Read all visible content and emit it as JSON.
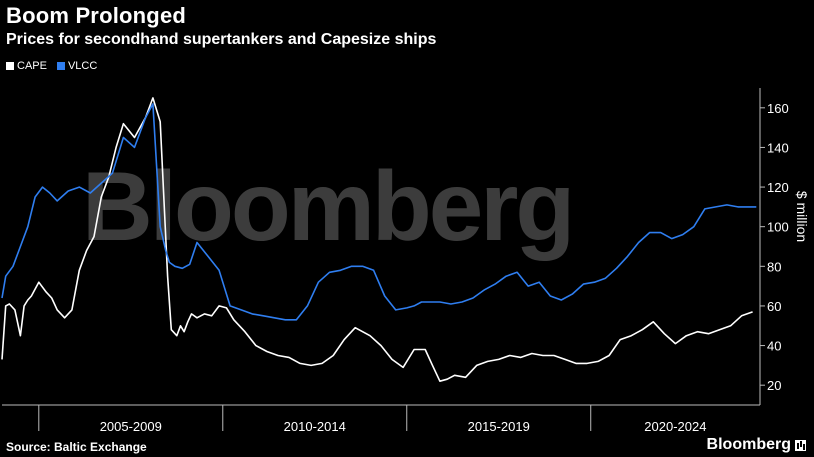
{
  "header": {
    "title": "Boom Prolonged",
    "subtitle": "Prices for secondhand supertankers and Capesize ships"
  },
  "watermark": "Bloomberg",
  "footer": {
    "source": "Source: Baltic Exchange",
    "brand": "Bloomberg"
  },
  "chart_data": {
    "type": "line",
    "title": "Boom Prolonged",
    "subtitle": "Prices for secondhand supertankers and Capesize ships",
    "ylabel": "$ million",
    "ylim": [
      10,
      170
    ],
    "yticks": [
      20,
      40,
      60,
      80,
      100,
      120,
      140,
      160
    ],
    "xlim": [
      2004.0,
      2024.6
    ],
    "x_tick_boundaries": [
      2005,
      2010,
      2015,
      2020
    ],
    "x_tick_labels": [
      "2005-2009",
      "2010-2014",
      "2015-2019",
      "2020-2024"
    ],
    "legend_position": "top-left",
    "grid": false,
    "colors": {
      "CAPE": "#ffffff",
      "VLCC": "#2f7ef0",
      "background": "#000000",
      "axis": "#bbbbbb"
    },
    "series": [
      {
        "name": "CAPE",
        "x": [
          2004.0,
          2004.1,
          2004.2,
          2004.35,
          2004.5,
          2004.6,
          2004.7,
          2004.8,
          2005.0,
          2005.2,
          2005.35,
          2005.5,
          2005.7,
          2005.9,
          2006.1,
          2006.3,
          2006.5,
          2006.7,
          2006.9,
          2007.1,
          2007.3,
          2007.6,
          2007.9,
          2008.1,
          2008.3,
          2008.5,
          2008.6,
          2008.75,
          2008.85,
          2008.95,
          2009.05,
          2009.15,
          2009.3,
          2009.5,
          2009.7,
          2009.9,
          2010.1,
          2010.3,
          2010.6,
          2010.9,
          2011.2,
          2011.5,
          2011.8,
          2012.1,
          2012.4,
          2012.7,
          2013.0,
          2013.3,
          2013.6,
          2014.0,
          2014.3,
          2014.6,
          2014.9,
          2015.2,
          2015.5,
          2015.7,
          2015.9,
          2016.1,
          2016.3,
          2016.6,
          2016.9,
          2017.2,
          2017.5,
          2017.8,
          2018.1,
          2018.4,
          2018.7,
          2019.0,
          2019.3,
          2019.6,
          2019.9,
          2020.2,
          2020.5,
          2020.8,
          2021.1,
          2021.4,
          2021.7,
          2022.0,
          2022.3,
          2022.6,
          2022.9,
          2023.2,
          2023.5,
          2023.8,
          2024.1,
          2024.4
        ],
        "values": [
          33,
          60,
          61,
          58,
          45,
          60,
          63,
          65,
          72,
          67,
          64,
          58,
          54,
          58,
          78,
          88,
          95,
          115,
          125,
          140,
          152,
          145,
          155,
          165,
          153,
          75,
          48,
          45,
          50,
          47,
          52,
          56,
          54,
          56,
          55,
          60,
          59,
          53,
          47,
          40,
          37,
          35,
          34,
          31,
          30,
          31,
          35,
          43,
          49,
          45,
          40,
          33,
          29,
          38,
          38,
          30,
          22,
          23,
          25,
          24,
          30,
          32,
          33,
          35,
          34,
          36,
          35,
          35,
          33,
          31,
          31,
          32,
          35,
          43,
          45,
          48,
          52,
          46,
          41,
          45,
          47,
          46,
          48,
          50,
          55,
          57
        ]
      },
      {
        "name": "VLCC",
        "x": [
          2004.0,
          2004.1,
          2004.3,
          2004.5,
          2004.7,
          2004.9,
          2005.1,
          2005.3,
          2005.5,
          2005.8,
          2006.1,
          2006.4,
          2006.7,
          2007.0,
          2007.3,
          2007.6,
          2007.9,
          2008.1,
          2008.3,
          2008.45,
          2008.55,
          2008.7,
          2008.9,
          2009.1,
          2009.3,
          2009.6,
          2009.9,
          2010.2,
          2010.5,
          2010.8,
          2011.1,
          2011.4,
          2011.7,
          2012.0,
          2012.3,
          2012.6,
          2012.9,
          2013.2,
          2013.5,
          2013.8,
          2014.1,
          2014.4,
          2014.7,
          2015.0,
          2015.2,
          2015.4,
          2015.6,
          2015.9,
          2016.2,
          2016.5,
          2016.8,
          2017.1,
          2017.4,
          2017.7,
          2018.0,
          2018.3,
          2018.6,
          2018.9,
          2019.2,
          2019.5,
          2019.8,
          2020.1,
          2020.4,
          2020.7,
          2021.0,
          2021.3,
          2021.6,
          2021.9,
          2022.2,
          2022.5,
          2022.8,
          2023.1,
          2023.4,
          2023.7,
          2024.0,
          2024.3,
          2024.5
        ],
        "values": [
          64,
          75,
          80,
          90,
          100,
          115,
          120,
          117,
          113,
          118,
          120,
          117,
          122,
          127,
          145,
          140,
          155,
          162,
          100,
          88,
          82,
          80,
          79,
          81,
          92,
          85,
          78,
          60,
          58,
          56,
          55,
          54,
          53,
          53,
          60,
          72,
          77,
          78,
          80,
          80,
          78,
          65,
          58,
          59,
          60,
          62,
          62,
          62,
          61,
          62,
          64,
          68,
          71,
          75,
          77,
          70,
          72,
          65,
          63,
          66,
          71,
          72,
          74,
          79,
          85,
          92,
          97,
          97,
          94,
          96,
          100,
          109,
          110,
          111,
          110,
          110,
          110
        ]
      }
    ]
  }
}
